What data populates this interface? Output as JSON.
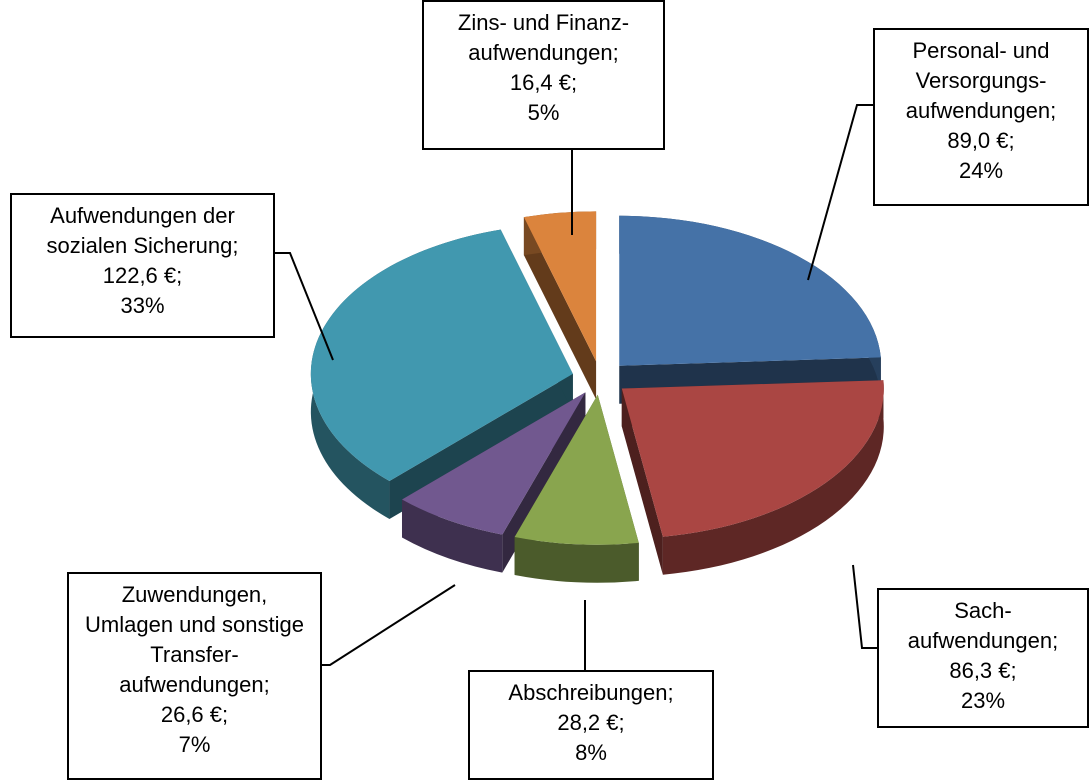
{
  "chart_data": {
    "type": "pie3d",
    "categories": [
      "Personal- und Versorgungs-aufwendungen",
      "Sach-aufwendungen",
      "Abschreibungen",
      "Zuwendungen, Umlagen und sonstige Transfer-aufwendungen",
      "Aufwendungen der sozialen Sicherung",
      "Zins- und Finanz-aufwendungen"
    ],
    "values": [
      89.0,
      86.3,
      28.2,
      26.6,
      122.6,
      16.4
    ],
    "value_labels": [
      "89,0 €",
      "86,3 €",
      "28,2 €",
      "26,6 €",
      "122,6 €",
      "16,4 €"
    ],
    "percent_labels": [
      "24%",
      "23%",
      "8%",
      "7%",
      "33%",
      "5%"
    ],
    "label_separator": ";",
    "colors": [
      "#4572a7",
      "#aa4643",
      "#89a54e",
      "#71588f",
      "#4198af",
      "#db843d"
    ]
  }
}
